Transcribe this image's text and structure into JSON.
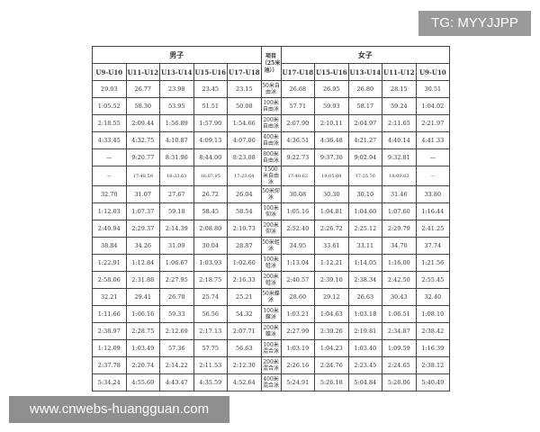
{
  "watermarks": {
    "top": "TG: MYYJJPP",
    "bottom": "www.cnwebs-huangguan.com"
  },
  "table": {
    "boys_label": "男子",
    "girls_label": "女子",
    "event_header": "项目（25米池））",
    "boys_ages": [
      "U9-U10",
      "U11-U12",
      "U13-U14",
      "U15-U16",
      "U17-U18"
    ],
    "girls_ages": [
      "U17-U18",
      "U15-U16",
      "U13-U14",
      "U11-U12",
      "U9-U10"
    ],
    "rows": [
      {
        "event": "50米自由泳",
        "boys": [
          "29.03",
          "26.77",
          "23.98",
          "23.45",
          "23.15"
        ],
        "girls": [
          "26.68",
          "26.95",
          "26.80",
          "28.15",
          "30.51"
        ]
      },
      {
        "event": "100米自由泳",
        "boys": [
          "1:05.52",
          "58.30",
          "53.95",
          "51.51",
          "50.08"
        ],
        "girls": [
          "57.71",
          "59.93",
          "58.17",
          "59.24",
          "1:04.02"
        ]
      },
      {
        "event": "200米自由泳",
        "boys": [
          "2:18.55",
          "2:09.44",
          "1:56.89",
          "1:57.90",
          "1:54.66"
        ],
        "girls": [
          "2:07.90",
          "2:10.11",
          "2:04.97",
          "2:11.65",
          "2:21.97"
        ]
      },
      {
        "event": "400米自由泳",
        "boys": [
          "4:33.45",
          "4:32.75",
          "4:10.87",
          "4:09.13",
          "4:07.00"
        ],
        "girls": [
          "4:36.51",
          "4:36.48",
          "4:21.27",
          "4:40.14",
          "4:41.33"
        ]
      },
      {
        "event": "800米自由泳",
        "boys": [
          "—",
          "9:20.77",
          "8:31.90",
          "8:44.00",
          "8:23.08"
        ],
        "girls": [
          "9:22.73",
          "9:37.30",
          "9:02.94",
          "9:32.81",
          "—"
        ]
      },
      {
        "event": "1500米自由泳",
        "boys": [
          "—",
          "17:48.59",
          "16:33.63",
          "16:07.95",
          "17:23.64"
        ],
        "girls": [
          "17:40.63",
          "18:05.08",
          "17:25.76",
          "18:09.63",
          "—"
        ]
      },
      {
        "event": "50米仰泳",
        "boys": [
          "32.70",
          "31.07",
          "27.67",
          "26.72",
          "26.04"
        ],
        "girls": [
          "30.08",
          "30.30",
          "30.10",
          "31.46",
          "33.80"
        ]
      },
      {
        "event": "100米仰泳",
        "boys": [
          "1:12.03",
          "1:07.37",
          "59.18",
          "58.45",
          "58.54"
        ],
        "girls": [
          "1:05.16",
          "1:04.81",
          "1:04.60",
          "1:07.60",
          "1:16.44"
        ]
      },
      {
        "event": "200米仰泳",
        "boys": [
          "2:40.94",
          "2:29.37",
          "2:14.39",
          "2:08.80",
          "2:10.73"
        ],
        "girls": [
          "2:52.40",
          "2:26.72",
          "2:25.12",
          "2:29.79",
          "2:41.25"
        ]
      },
      {
        "event": "50米蛙泳",
        "boys": [
          "38.84",
          "34.26",
          "31.09",
          "30.04",
          "28.87"
        ],
        "girls": [
          "34.95",
          "33.61",
          "33.11",
          "34.70",
          "37.74"
        ]
      },
      {
        "event": "100米蛙泳",
        "boys": [
          "1:22.91",
          "1:12.84",
          "1:06.67",
          "1:03.93",
          "1:02.60"
        ],
        "girls": [
          "1:13.04",
          "1:12.21",
          "1:14.05",
          "1:16.00",
          "1:21.56"
        ]
      },
      {
        "event": "200米蛙泳",
        "boys": [
          "2:58.06",
          "2:31.88",
          "2:27.95",
          "2:18.75",
          "2:16.33"
        ],
        "girls": [
          "2:40.57",
          "2:39.10",
          "2:38.34",
          "2:42.50",
          "2:55.45"
        ]
      },
      {
        "event": "50米蝶泳",
        "boys": [
          "32.21",
          "29.41",
          "26.78",
          "25.74",
          "25.21"
        ],
        "girls": [
          "28.60",
          "29.12",
          "26.63",
          "30.43",
          "32.40"
        ]
      },
      {
        "event": "100米蝶泳",
        "boys": [
          "1:11.66",
          "1:06.16",
          "59.33",
          "56.56",
          "54.32"
        ],
        "girls": [
          "1:03.21",
          "1:04.63",
          "1:03.18",
          "1:06.51",
          "1:08.10"
        ]
      },
      {
        "event": "200米蝶泳",
        "boys": [
          "2:38.97",
          "2:28.75",
          "2:12.69",
          "2:17.13",
          "2:07.71"
        ],
        "girls": [
          "2:27.99",
          "2:39.26",
          "2:19.81",
          "2:34.87",
          "2:38.42"
        ]
      },
      {
        "event": "100米混合泳",
        "boys": [
          "1:12.09",
          "1:03.49",
          "57.36",
          "57.75",
          "56.63"
        ],
        "girls": [
          "1:03.19",
          "1:04.23",
          "1:03.40",
          "1:09.59",
          "1:16.39"
        ]
      },
      {
        "event": "200米混合泳",
        "boys": [
          "2:37.78",
          "2:20.74",
          "2:14.22",
          "2:11.53",
          "2:12.30"
        ],
        "girls": [
          "2:26.16",
          "2:24.76",
          "2:23.45",
          "2:24.65",
          "2:38.12"
        ]
      },
      {
        "event": "400米混合泳",
        "boys": [
          "5:34.24",
          "4:55.69",
          "4:43.47",
          "4:35.59",
          "4:52.64"
        ],
        "girls": [
          "5:24.91",
          "5:26.18",
          "5:04.84",
          "5:28.06",
          "5:40.49"
        ]
      }
    ]
  }
}
